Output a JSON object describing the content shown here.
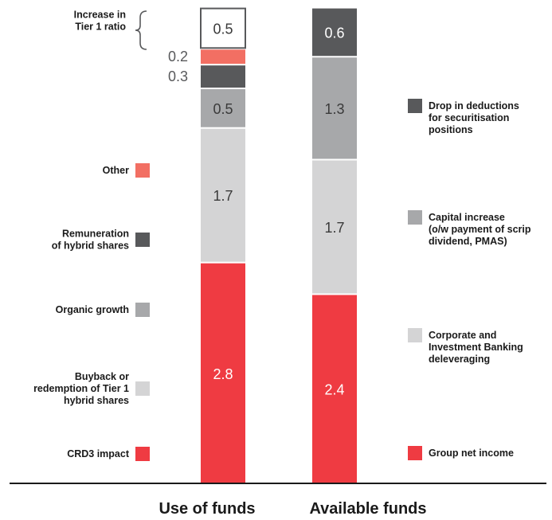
{
  "chart_data": {
    "type": "bar",
    "stacked": true,
    "categories": [
      "Use of funds",
      "Available funds"
    ],
    "series": [
      {
        "bar": "Use of funds",
        "segments": [
          {
            "name": "CRD3 impact",
            "value": 2.8,
            "color": "#ef3b42",
            "value_label": "2.8"
          },
          {
            "name": "Buyback or redemption of Tier 1 hybrid shares",
            "value": 1.7,
            "color": "#d4d4d5",
            "value_label": "1.7"
          },
          {
            "name": "Organic growth",
            "value": 0.5,
            "color": "#a7a8aa",
            "value_label": "0.5"
          },
          {
            "name": "Remuneration of hybrid shares",
            "value": 0.3,
            "color": "#58595b",
            "value_label": "0.3"
          },
          {
            "name": "Other",
            "value": 0.2,
            "color": "#f26f63",
            "value_label": "0.2"
          },
          {
            "name": "Increase in Tier 1 ratio",
            "value": 0.5,
            "color": "#ffffff",
            "value_label": "0.5"
          }
        ]
      },
      {
        "bar": "Available funds",
        "segments": [
          {
            "name": "Group net income",
            "value": 2.4,
            "color": "#ef3b42",
            "value_label": "2.4"
          },
          {
            "name": "Corporate and Investment Banking deleveraging",
            "value": 1.7,
            "color": "#d4d4d5",
            "value_label": "1.7"
          },
          {
            "name": "Capital increase (o/w payment of scrip dividend, PMAS)",
            "value": 1.3,
            "color": "#a7a8aa",
            "value_label": "1.3"
          },
          {
            "name": "Drop in deductions for securitisation positions",
            "value": 0.6,
            "color": "#58595b",
            "value_label": "0.6"
          }
        ]
      }
    ],
    "left_legend": [
      {
        "lines": [
          "Increase in",
          "Tier 1 ratio"
        ],
        "marker": "brace"
      },
      {
        "lines": [
          "Other"
        ],
        "color": "#f26f63"
      },
      {
        "lines": [
          "Remuneration",
          "of hybrid shares"
        ],
        "color": "#58595b"
      },
      {
        "lines": [
          "Organic growth"
        ],
        "color": "#a7a8aa"
      },
      {
        "lines": [
          "Buyback or",
          "redemption of Tier 1",
          "hybrid shares"
        ],
        "color": "#d4d4d5"
      },
      {
        "lines": [
          "CRD3 impact"
        ],
        "color": "#ef3b42"
      }
    ],
    "right_legend": [
      {
        "lines": [
          "Drop in deductions",
          "for securitisation",
          "positions"
        ],
        "color": "#58595b"
      },
      {
        "lines": [
          "Capital increase",
          "(o/w payment of scrip",
          "dividend, PMAS)"
        ],
        "color": "#a7a8aa"
      },
      {
        "lines": [
          "Corporate and",
          "Investment Banking",
          "deleveraging"
        ],
        "color": "#d4d4d5"
      },
      {
        "lines": [
          "Group net income"
        ],
        "color": "#ef3b42"
      }
    ],
    "ylim": [
      0,
      6.0
    ],
    "grid": false
  }
}
